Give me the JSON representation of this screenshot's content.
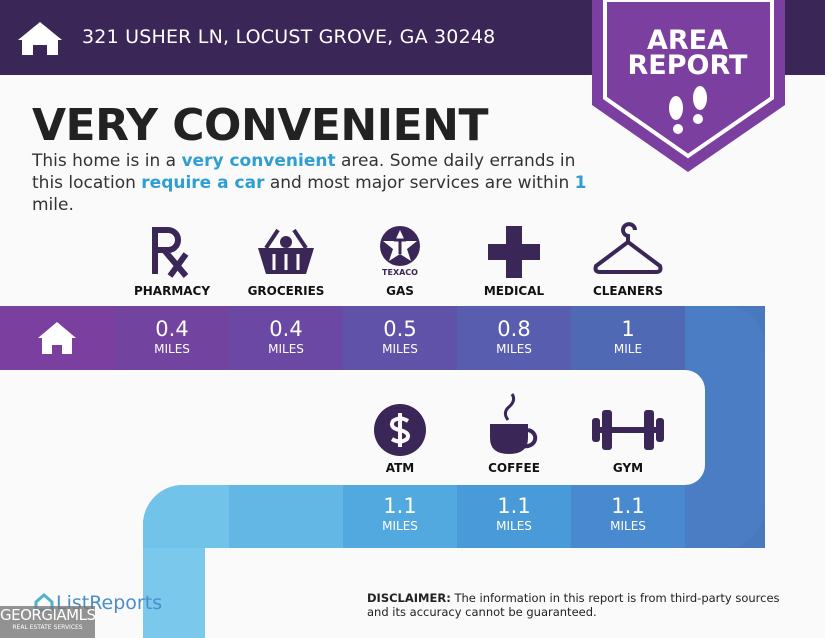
{
  "header": {
    "address": "321 USHER LN, LOCUST GROVE, GA 30248"
  },
  "badge": {
    "line1": "AREA",
    "line2": "REPORT"
  },
  "headline": "VERY CONVENIENT",
  "description": [
    {
      "text": "This home is in a ",
      "highlight": false
    },
    {
      "text": "very convenient",
      "highlight": true
    },
    {
      "text": " area. Some daily errands in this location ",
      "highlight": false
    },
    {
      "text": "require a car",
      "highlight": true
    },
    {
      "text": " and most major services are within ",
      "highlight": false
    },
    {
      "text": "1",
      "highlight": true
    },
    {
      "text": " mile.",
      "highlight": false
    }
  ],
  "route": {
    "top": [
      {
        "name": "PHARMACY",
        "distance": 0.4,
        "unit": "MILES"
      },
      {
        "name": "GROCERIES",
        "distance": 0.4,
        "unit": "MILES"
      },
      {
        "name": "GAS",
        "distance": 0.5,
        "unit": "MILES",
        "icon_text": "TEXACO"
      },
      {
        "name": "MEDICAL",
        "distance": 0.8,
        "unit": "MILES"
      },
      {
        "name": "CLEANERS",
        "distance": 1,
        "unit": "MILE"
      }
    ],
    "bottom": [
      {
        "name": "ATM",
        "distance": 1.1,
        "unit": "MILES"
      },
      {
        "name": "COFFEE",
        "distance": 1.1,
        "unit": "MILES"
      },
      {
        "name": "GYM",
        "distance": 1.1,
        "unit": "MILES"
      }
    ]
  },
  "footer": {
    "brand": "ListReports",
    "disclaimer_label": "DISCLAIMER:",
    "disclaimer": "The information in this report is from third-party sources and its accuracy cannot be guaranteed.",
    "watermark": "GEORGIAMLS",
    "watermark_sub": "REAL ESTATE SERVICES"
  }
}
